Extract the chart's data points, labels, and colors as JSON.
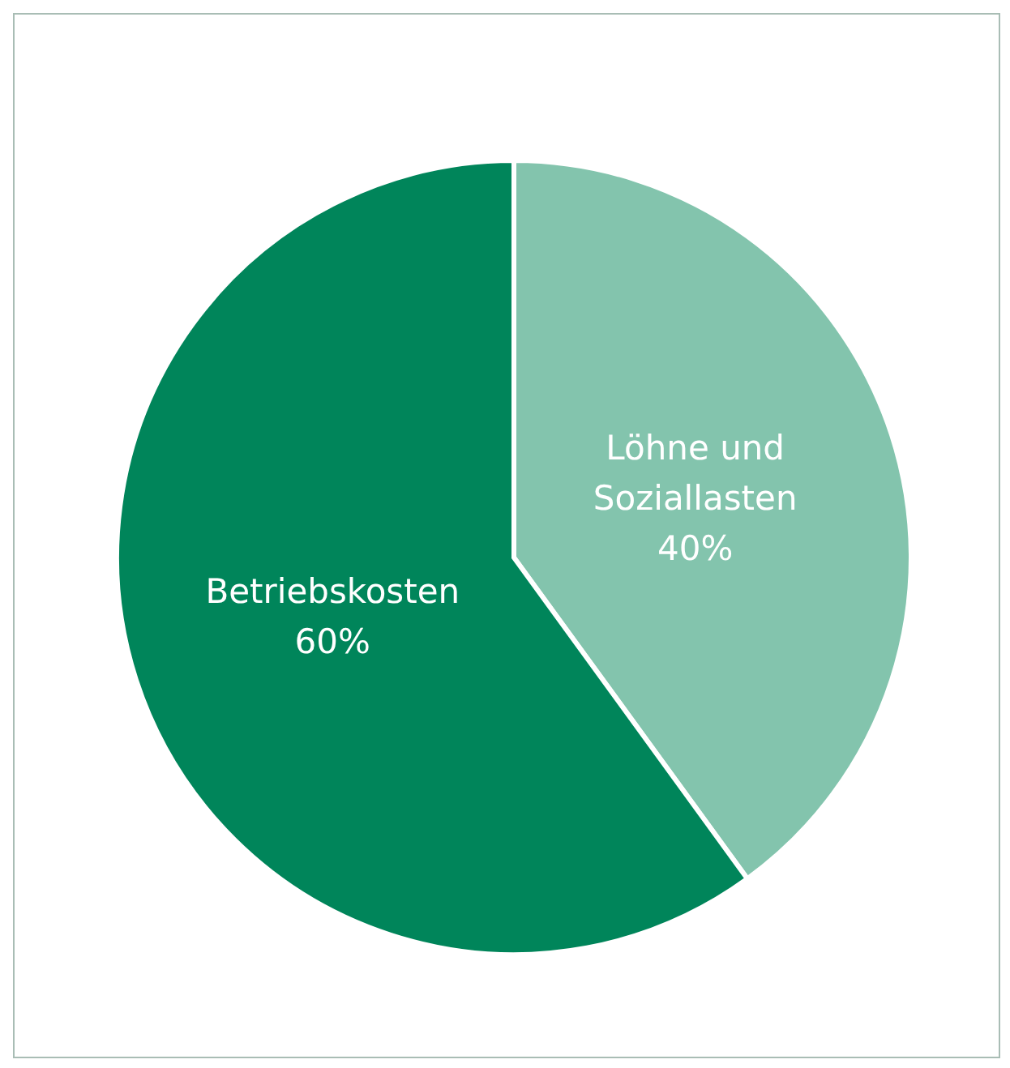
{
  "chart_data": {
    "type": "pie",
    "categories": [
      "Löhne und Soziallasten",
      "Betriebskosten"
    ],
    "values": [
      40,
      60
    ],
    "colors": [
      "#83c4ad",
      "#00855a"
    ],
    "value_labels": [
      "40%",
      "60%"
    ],
    "legend": false
  }
}
